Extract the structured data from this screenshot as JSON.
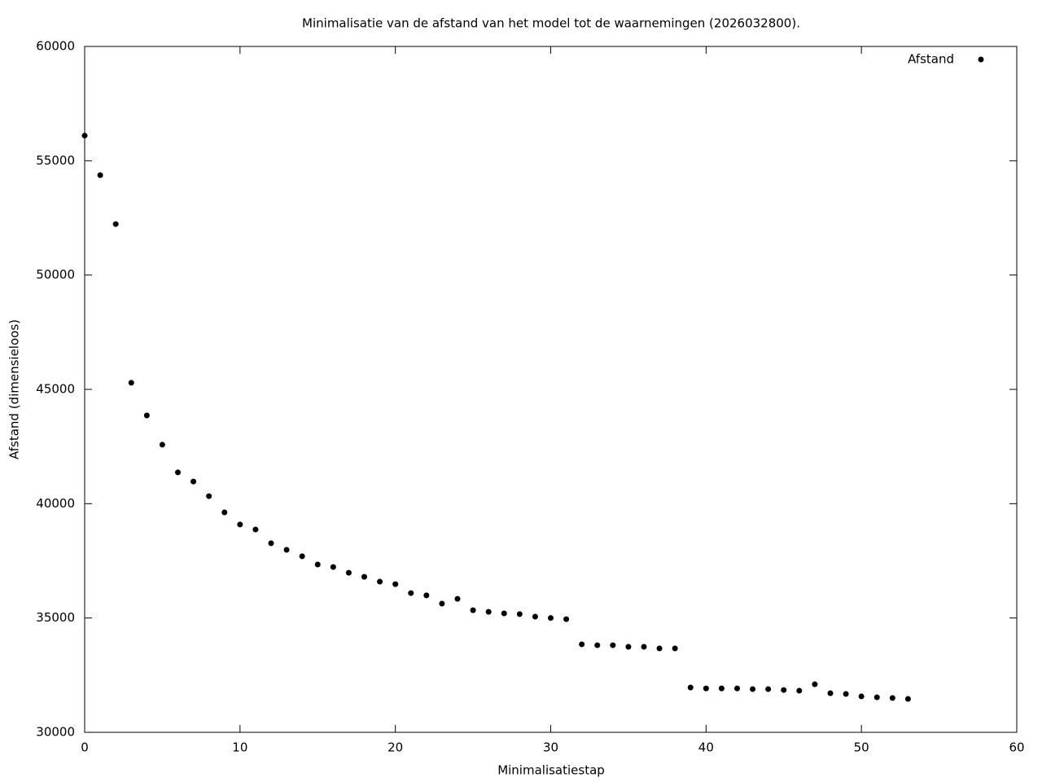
{
  "chart_data": {
    "type": "scatter",
    "title": "Minimalisatie van de afstand van het model tot de waarnemingen (2026032800).",
    "x_label": "Minimalisatiestap",
    "y_label": "Afstand (dimensieloos)",
    "x": [
      0,
      1,
      2,
      3,
      4,
      5,
      6,
      7,
      8,
      9,
      10,
      11,
      12,
      13,
      14,
      15,
      16,
      17,
      18,
      19,
      20,
      21,
      22,
      23,
      24,
      25,
      26,
      27,
      28,
      29,
      30,
      31,
      32,
      33,
      34,
      35,
      36,
      37,
      38,
      39,
      40,
      41,
      42,
      43,
      44,
      45,
      46,
      47,
      48,
      49,
      50,
      51,
      52,
      53
    ],
    "series": [
      {
        "name": "Afstand",
        "color": "#000000",
        "values": [
          56100,
          54370,
          52230,
          45290,
          43860,
          42580,
          41370,
          40970,
          40330,
          39620,
          39090,
          38870,
          38270,
          37980,
          37700,
          37340,
          37230,
          36980,
          36800,
          36590,
          36480,
          36090,
          35990,
          35630,
          35840,
          35340,
          35270,
          35200,
          35170,
          35060,
          35000,
          34950,
          33850,
          33810,
          33810,
          33740,
          33740,
          33670,
          33670,
          31960,
          31920,
          31920,
          31920,
          31890,
          31890,
          31850,
          31820,
          32100,
          31710,
          31680,
          31570,
          31530,
          31500,
          31460
        ]
      }
    ],
    "xlim": [
      0,
      60
    ],
    "xticks": [
      0,
      10,
      20,
      30,
      40,
      50,
      60
    ],
    "ylim": [
      30000,
      60000
    ],
    "yticks": [
      30000,
      35000,
      40000,
      45000,
      50000,
      55000,
      60000
    ],
    "legend": "top right"
  }
}
